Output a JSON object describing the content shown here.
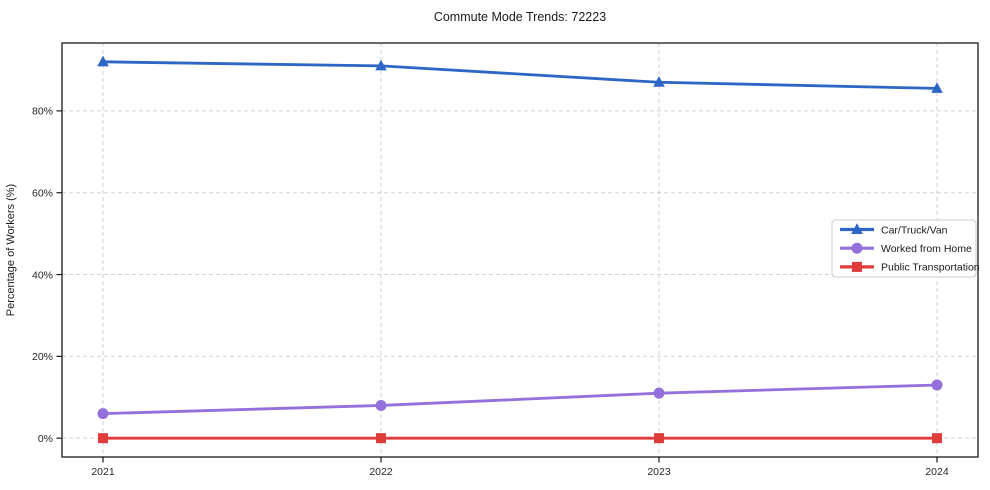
{
  "chart_data": {
    "type": "line",
    "title": "Commute Mode Trends: 72223",
    "xlabel": "",
    "ylabel": "Percentage of Workers (%)",
    "x": [
      2021,
      2022,
      2023,
      2024
    ],
    "x_tick_labels": [
      "2021",
      "2022",
      "2023",
      "2024"
    ],
    "y_ticks": [
      0,
      20,
      40,
      60,
      80
    ],
    "y_tick_labels": [
      "0%",
      "20%",
      "40%",
      "60%",
      "80%"
    ],
    "ylim": [
      -4.6,
      96.6
    ],
    "grid": "dashed, both axes",
    "legend_position": "center right",
    "frame_color": "#1a1a1a",
    "grid_color": "#c9c9c9",
    "series": [
      {
        "name": "Car/Truck/Van",
        "color": "#2d66c4",
        "marker": "triangle",
        "values": [
          92,
          91,
          87,
          85.5
        ]
      },
      {
        "name": "Worked from Home",
        "color": "#9370db",
        "marker": "circle",
        "values": [
          6,
          8,
          11,
          13
        ]
      },
      {
        "name": "Public Transportation",
        "color": "#e03c3c",
        "marker": "square",
        "values": [
          0,
          0,
          0,
          0
        ]
      }
    ]
  }
}
